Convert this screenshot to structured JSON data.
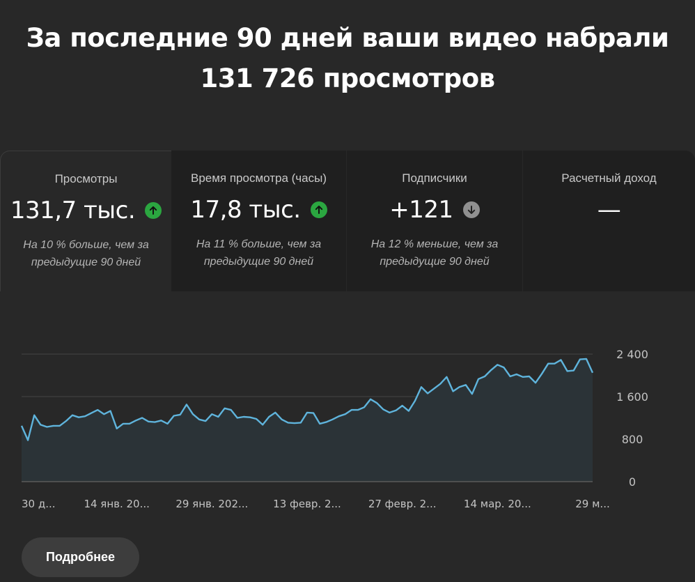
{
  "headline": {
    "line1": "За последние 90 дней ваши видео набрали",
    "line2": "131 726 просмотров"
  },
  "metrics": [
    {
      "title": "Просмотры",
      "value": "131,7 тыс.",
      "trend_icon": "arrow-up-icon",
      "note_line1": "На 10 % больше, чем за",
      "note_line2": "предыдущие 90 дней"
    },
    {
      "title": "Время просмотра (часы)",
      "value": "17,8 тыс.",
      "trend_icon": "arrow-up-icon",
      "note_line1": "На 11 % больше, чем за",
      "note_line2": "предыдущие 90 дней"
    },
    {
      "title": "Подписчики",
      "value": "+121",
      "trend_icon": "arrow-down-icon",
      "note_line1": "На 12 % меньше, чем за",
      "note_line2": "предыдущие 90 дней"
    },
    {
      "title": "Расчетный доход",
      "value": "—"
    }
  ],
  "colors": {
    "background": "#282828",
    "card_inactive": "#1f1f1f",
    "trend_up": "#2ba640",
    "trend_down": "#909090",
    "line": "#5fb4dc",
    "area_fill": "#2b3337",
    "grid": "#444444"
  },
  "chart_data": {
    "type": "area",
    "title": "",
    "ylabel": "",
    "xlabel": "",
    "ylim": [
      0,
      2400
    ],
    "yticks": [
      "0",
      "800",
      "1 600",
      "2 400"
    ],
    "ytick_values": [
      0,
      800,
      1600,
      2400
    ],
    "grid": true,
    "x_tick_labels": [
      "30 д...",
      "14 янв. 20...",
      "29 янв. 202...",
      "13 февр. 2...",
      "27 февр. 2...",
      "14 мар. 20...",
      "29 м..."
    ],
    "x_tick_index": [
      0,
      15,
      30,
      45,
      60,
      75,
      90
    ],
    "values": [
      1050,
      780,
      1250,
      1070,
      1030,
      1050,
      1050,
      1140,
      1250,
      1210,
      1230,
      1290,
      1350,
      1270,
      1330,
      1000,
      1090,
      1090,
      1150,
      1200,
      1130,
      1120,
      1150,
      1090,
      1240,
      1260,
      1450,
      1270,
      1170,
      1140,
      1270,
      1220,
      1380,
      1350,
      1200,
      1220,
      1210,
      1180,
      1070,
      1220,
      1300,
      1170,
      1110,
      1100,
      1110,
      1300,
      1290,
      1090,
      1120,
      1170,
      1230,
      1270,
      1350,
      1350,
      1400,
      1550,
      1480,
      1360,
      1300,
      1340,
      1430,
      1330,
      1520,
      1780,
      1660,
      1750,
      1840,
      1970,
      1700,
      1780,
      1820,
      1650,
      1930,
      1980,
      2100,
      2200,
      2150,
      1980,
      2020,
      1970,
      1980,
      1860,
      2030,
      2220,
      2220,
      2290,
      2080,
      2090,
      2300,
      2310,
      2050
    ]
  },
  "more_button": {
    "label": "Подробнее"
  }
}
